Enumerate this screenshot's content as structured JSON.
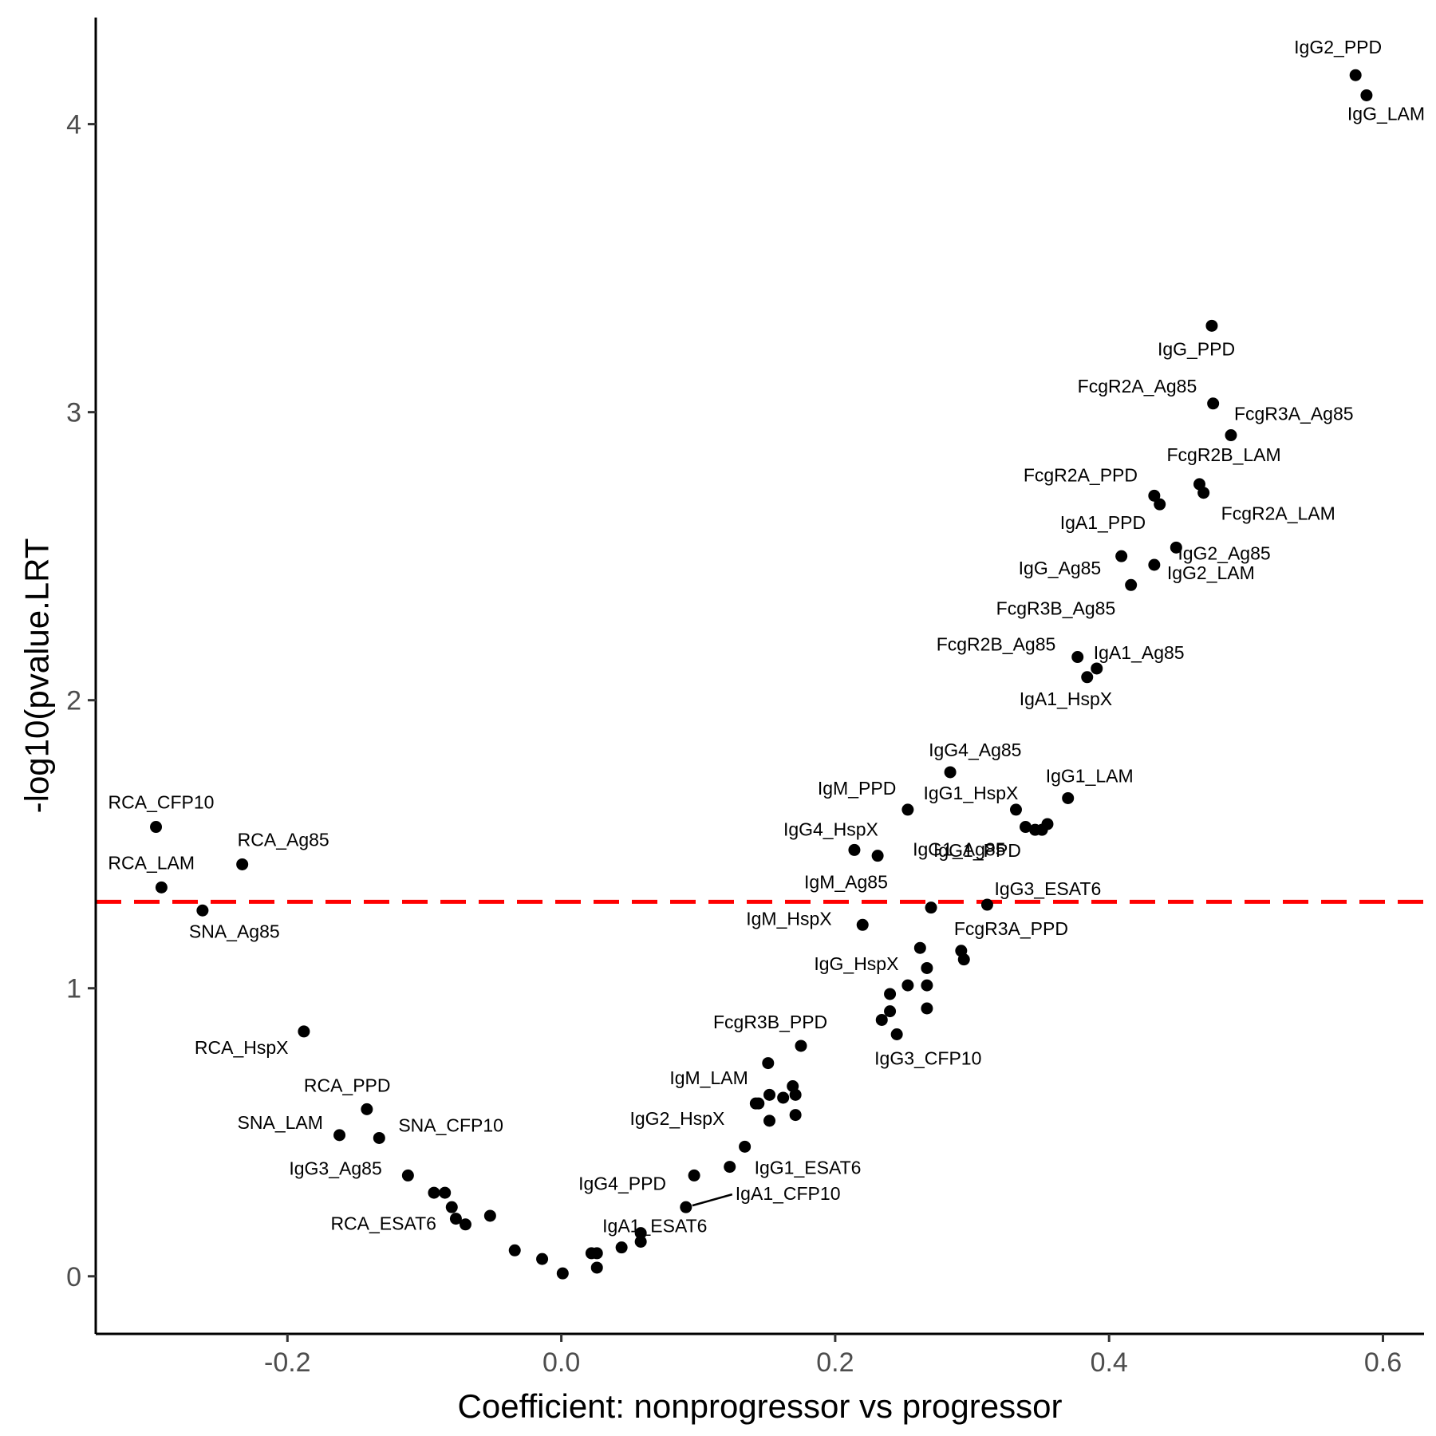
{
  "chart_data": {
    "type": "scatter",
    "title": "",
    "xlabel": "Coefficient: nonprogressor vs progressor",
    "ylabel": "-log10(pvalue.LRT",
    "xlim": [
      -0.34,
      0.63
    ],
    "ylim": [
      -0.2,
      4.37
    ],
    "xticks": [
      -0.2,
      0.0,
      0.2,
      0.4,
      0.6
    ],
    "xtick_labels": [
      "-0.2",
      "0.0",
      "0.2",
      "0.4",
      "0.6"
    ],
    "yticks": [
      0,
      1,
      2,
      3,
      4
    ],
    "ytick_labels": [
      "0",
      "1",
      "2",
      "3",
      "4"
    ],
    "grid": false,
    "point_color": "#000000",
    "threshold": {
      "y": 1.3,
      "color": "#ff0000",
      "style": "dashed"
    },
    "labeled_points": [
      {
        "label": "IgG2_PPD",
        "x": 0.58,
        "y": 4.17
      },
      {
        "label": "IgG_LAM",
        "x": 0.588,
        "y": 4.1
      },
      {
        "label": "IgG_PPD",
        "x": 0.475,
        "y": 3.3
      },
      {
        "label": "FcgR2A_Ag85",
        "x": 0.476,
        "y": 3.03
      },
      {
        "label": "FcgR3A_Ag85",
        "x": 0.489,
        "y": 2.92
      },
      {
        "label": "FcgR2B_LAM",
        "x": 0.466,
        "y": 2.75
      },
      {
        "label": "FcgR2A_LAM",
        "x": 0.469,
        "y": 2.72
      },
      {
        "label": "FcgR2A_PPD",
        "x": 0.433,
        "y": 2.71
      },
      {
        "label": "IgA1_PPD",
        "x": 0.437,
        "y": 2.68
      },
      {
        "label": "IgG2_Ag85",
        "x": 0.449,
        "y": 2.53
      },
      {
        "label": "IgG_Ag85",
        "x": 0.409,
        "y": 2.5
      },
      {
        "label": "IgG2_LAM",
        "x": 0.433,
        "y": 2.47
      },
      {
        "label": "FcgR3B_Ag85",
        "x": 0.416,
        "y": 2.4
      },
      {
        "label": "FcgR2B_Ag85",
        "x": 0.377,
        "y": 2.15
      },
      {
        "label": "IgA1_Ag85",
        "x": 0.391,
        "y": 2.11
      },
      {
        "label": "IgA1_HspX",
        "x": 0.384,
        "y": 2.08
      },
      {
        "label": "IgG4_Ag85",
        "x": 0.284,
        "y": 1.75
      },
      {
        "label": "IgG1_LAM",
        "x": 0.37,
        "y": 1.66
      },
      {
        "label": "IgM_PPD",
        "x": 0.253,
        "y": 1.62
      },
      {
        "label": "IgG1_HspX",
        "x": 0.332,
        "y": 1.62
      },
      {
        "label": "IgG1_PPD",
        "x": 0.355,
        "y": 1.57
      },
      {
        "label": "IgG4_HspX",
        "x": 0.214,
        "y": 1.48
      },
      {
        "label": "IgG1_Ag85",
        "x": 0.231,
        "y": 1.46
      },
      {
        "label": "IgG3_ESAT6",
        "x": 0.311,
        "y": 1.29
      },
      {
        "label": "IgM_Ag85",
        "x": 0.27,
        "y": 1.28
      },
      {
        "label": "IgM_HspX",
        "x": 0.22,
        "y": 1.22
      },
      {
        "label": "FcgR3A_PPD",
        "x": 0.292,
        "y": 1.13
      },
      {
        "label": "IgG_HspX",
        "x": 0.262,
        "y": 1.14
      },
      {
        "label": "IgG3_CFP10",
        "x": 0.245,
        "y": 0.84
      },
      {
        "label": "FcgR3B_PPD",
        "x": 0.175,
        "y": 0.8
      },
      {
        "label": "IgM_LAM",
        "x": 0.142,
        "y": 0.6
      },
      {
        "label": "IgG2_HspX",
        "x": 0.152,
        "y": 0.54
      },
      {
        "label": "IgG1_ESAT6",
        "x": 0.134,
        "y": 0.45
      },
      {
        "label": "IgG4_PPD",
        "x": 0.097,
        "y": 0.35
      },
      {
        "label": "IgA1_CFP10",
        "x": 0.091,
        "y": 0.24
      },
      {
        "label": "IgA1_ESAT6",
        "x": 0.058,
        "y": 0.15
      },
      {
        "label": "RCA_CFP10",
        "x": -0.296,
        "y": 1.56
      },
      {
        "label": "RCA_Ag85",
        "x": -0.233,
        "y": 1.43
      },
      {
        "label": "RCA_LAM",
        "x": -0.292,
        "y": 1.35
      },
      {
        "label": "SNA_Ag85",
        "x": -0.262,
        "y": 1.27
      },
      {
        "label": "RCA_HspX",
        "x": -0.188,
        "y": 0.85
      },
      {
        "label": "RCA_PPD",
        "x": -0.142,
        "y": 0.58
      },
      {
        "label": "SNA_LAM",
        "x": -0.162,
        "y": 0.49
      },
      {
        "label": "SNA_CFP10",
        "x": -0.133,
        "y": 0.48
      },
      {
        "label": "IgG3_Ag85",
        "x": -0.112,
        "y": 0.35
      },
      {
        "label": "RCA_ESAT6",
        "x": -0.077,
        "y": 0.2
      }
    ],
    "unlabeled_points": [
      {
        "x": 0.151,
        "y": 0.74
      },
      {
        "x": 0.152,
        "y": 0.63
      },
      {
        "x": 0.144,
        "y": 0.6
      },
      {
        "x": 0.162,
        "y": 0.62
      },
      {
        "x": 0.169,
        "y": 0.66
      },
      {
        "x": 0.171,
        "y": 0.63
      },
      {
        "x": 0.171,
        "y": 0.56
      },
      {
        "x": 0.123,
        "y": 0.38
      },
      {
        "x": 0.339,
        "y": 1.56
      },
      {
        "x": 0.346,
        "y": 1.55
      },
      {
        "x": 0.351,
        "y": 1.55
      },
      {
        "x": 0.294,
        "y": 1.1
      },
      {
        "x": 0.267,
        "y": 1.07
      },
      {
        "x": 0.253,
        "y": 1.01
      },
      {
        "x": 0.267,
        "y": 1.01
      },
      {
        "x": 0.24,
        "y": 0.98
      },
      {
        "x": 0.267,
        "y": 0.93
      },
      {
        "x": 0.24,
        "y": 0.92
      },
      {
        "x": 0.234,
        "y": 0.89
      },
      {
        "x": -0.093,
        "y": 0.29
      },
      {
        "x": -0.085,
        "y": 0.29
      },
      {
        "x": -0.08,
        "y": 0.24
      },
      {
        "x": -0.07,
        "y": 0.18
      },
      {
        "x": -0.052,
        "y": 0.21
      },
      {
        "x": -0.034,
        "y": 0.09
      },
      {
        "x": -0.014,
        "y": 0.06
      },
      {
        "x": 0.001,
        "y": 0.01
      },
      {
        "x": 0.022,
        "y": 0.08
      },
      {
        "x": 0.026,
        "y": 0.08
      },
      {
        "x": 0.026,
        "y": 0.03
      },
      {
        "x": 0.044,
        "y": 0.1
      },
      {
        "x": 0.058,
        "y": 0.12
      }
    ]
  }
}
